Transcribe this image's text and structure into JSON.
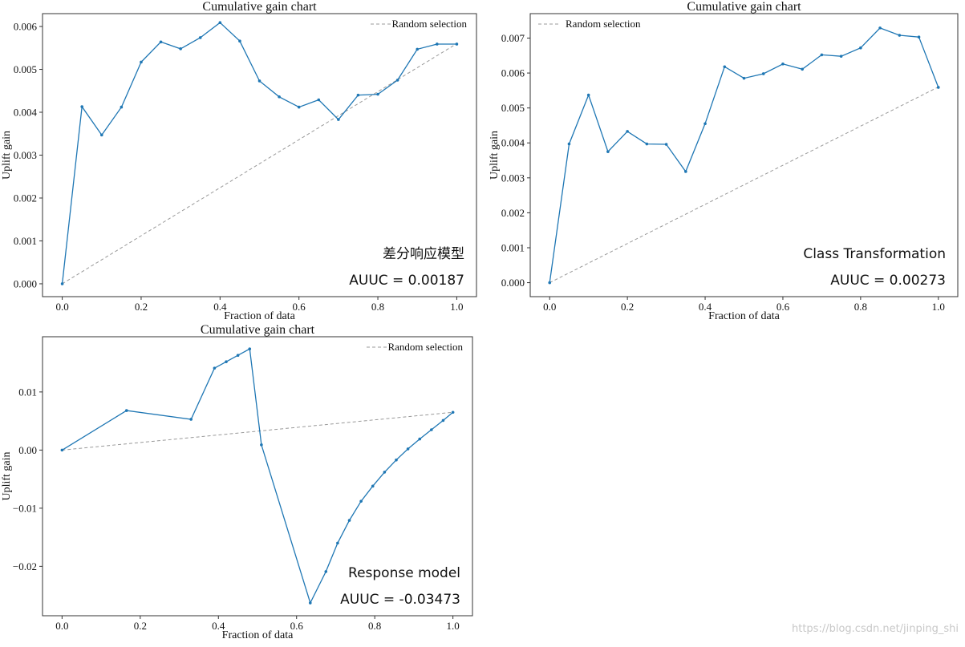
{
  "colors": {
    "series": "#1f77b4",
    "random": "#999999"
  },
  "watermark": "https://blog.csdn.net/jinping_shi",
  "chart_data": [
    {
      "type": "line",
      "title": "Cumulative gain chart",
      "xlabel": "Fraction of data",
      "ylabel": "Uplift gain",
      "xlim": [
        -0.05,
        1.05
      ],
      "ylim": [
        -0.0003,
        0.0063
      ],
      "xticks": [
        0.0,
        0.2,
        0.4,
        0.6,
        0.8,
        1.0
      ],
      "xtick_labels": [
        "0.0",
        "0.2",
        "0.4",
        "0.6",
        "0.8",
        "1.0"
      ],
      "yticks": [
        0.0,
        0.001,
        0.002,
        0.003,
        0.004,
        0.005,
        0.006
      ],
      "ytick_labels": [
        "0.000",
        "0.001",
        "0.002",
        "0.003",
        "0.004",
        "0.005",
        "0.006"
      ],
      "legend": {
        "label": "Random selection",
        "placement": "top-right"
      },
      "annotations": [
        "差分响应模型",
        "AUUC = 0.00187"
      ],
      "random_line": {
        "x": [
          0.0,
          1.0
        ],
        "y": [
          0.0,
          0.0056
        ]
      },
      "series": [
        {
          "x": [
            0.0,
            0.05,
            0.1,
            0.15,
            0.2,
            0.25,
            0.3,
            0.35,
            0.4,
            0.45,
            0.5,
            0.55,
            0.6,
            0.65,
            0.7,
            0.75,
            0.8,
            0.85,
            0.9,
            0.95,
            1.0
          ],
          "y": [
            0.0,
            0.00413,
            0.00347,
            0.00412,
            0.00517,
            0.00564,
            0.00548,
            0.00574,
            0.00609,
            0.00566,
            0.00473,
            0.00436,
            0.00412,
            0.00429,
            0.00383,
            0.0044,
            0.00442,
            0.00475,
            0.00547,
            0.00559,
            0.00559
          ]
        }
      ]
    },
    {
      "type": "line",
      "title": "Cumulative gain chart",
      "xlabel": "Fraction of data",
      "ylabel": "Uplift gain",
      "xlim": [
        -0.05,
        1.05
      ],
      "ylim": [
        -0.0004,
        0.0077
      ],
      "xticks": [
        0.0,
        0.2,
        0.4,
        0.6,
        0.8,
        1.0
      ],
      "xtick_labels": [
        "0.0",
        "0.2",
        "0.4",
        "0.6",
        "0.8",
        "1.0"
      ],
      "yticks": [
        0.0,
        0.001,
        0.002,
        0.003,
        0.004,
        0.005,
        0.006,
        0.007
      ],
      "ytick_labels": [
        "0.000",
        "0.001",
        "0.002",
        "0.003",
        "0.004",
        "0.005",
        "0.006",
        "0.007"
      ],
      "legend": {
        "label": "Random selection",
        "placement": "top-left"
      },
      "annotations": [
        "Class Transformation",
        "AUUC = 0.00273"
      ],
      "random_line": {
        "x": [
          0.0,
          1.0
        ],
        "y": [
          0.0,
          0.0056
        ]
      },
      "series": [
        {
          "x": [
            0.0,
            0.05,
            0.1,
            0.15,
            0.2,
            0.25,
            0.3,
            0.35,
            0.4,
            0.45,
            0.5,
            0.55,
            0.6,
            0.65,
            0.7,
            0.75,
            0.8,
            0.85,
            0.9,
            0.95,
            1.0
          ],
          "y": [
            0.0,
            0.00397,
            0.00537,
            0.00375,
            0.00433,
            0.00397,
            0.00396,
            0.00318,
            0.00455,
            0.00618,
            0.00585,
            0.00598,
            0.00626,
            0.00611,
            0.00652,
            0.00648,
            0.00672,
            0.00729,
            0.00708,
            0.00703,
            0.00559
          ]
        }
      ]
    },
    {
      "type": "line",
      "title": "Cumulative gain chart",
      "xlabel": "Fraction of data",
      "ylabel": "Uplift gain",
      "xlim": [
        -0.05,
        1.05
      ],
      "ylim": [
        -0.0285,
        0.0195
      ],
      "xticks": [
        0.0,
        0.2,
        0.4,
        0.6,
        0.8,
        1.0
      ],
      "xtick_labels": [
        "0.0",
        "0.2",
        "0.4",
        "0.6",
        "0.8",
        "1.0"
      ],
      "yticks": [
        -0.02,
        -0.01,
        0.0,
        0.01
      ],
      "ytick_labels": [
        "−0.02",
        "−0.01",
        "0.00",
        "0.01"
      ],
      "legend": {
        "label": "Random selection",
        "placement": "top-right"
      },
      "annotations": [
        "Response model",
        "AUUC = -0.03473"
      ],
      "random_line": {
        "x": [
          0.0,
          1.0
        ],
        "y": [
          0.0,
          0.0065
        ]
      },
      "series": [
        {
          "x": [
            0.0,
            0.165,
            0.33,
            0.39,
            0.42,
            0.45,
            0.48,
            0.51,
            0.635,
            0.675,
            0.705,
            0.735,
            0.765,
            0.795,
            0.825,
            0.855,
            0.885,
            0.915,
            0.945,
            0.975,
            1.0
          ],
          "y": [
            0.0,
            0.0068,
            0.0053,
            0.0141,
            0.0152,
            0.0163,
            0.0174,
            0.0009,
            -0.0263,
            -0.0209,
            -0.016,
            -0.0121,
            -0.0088,
            -0.0062,
            -0.0038,
            -0.0017,
            0.0002,
            0.0019,
            0.0035,
            0.0051,
            0.0065
          ]
        }
      ]
    }
  ]
}
